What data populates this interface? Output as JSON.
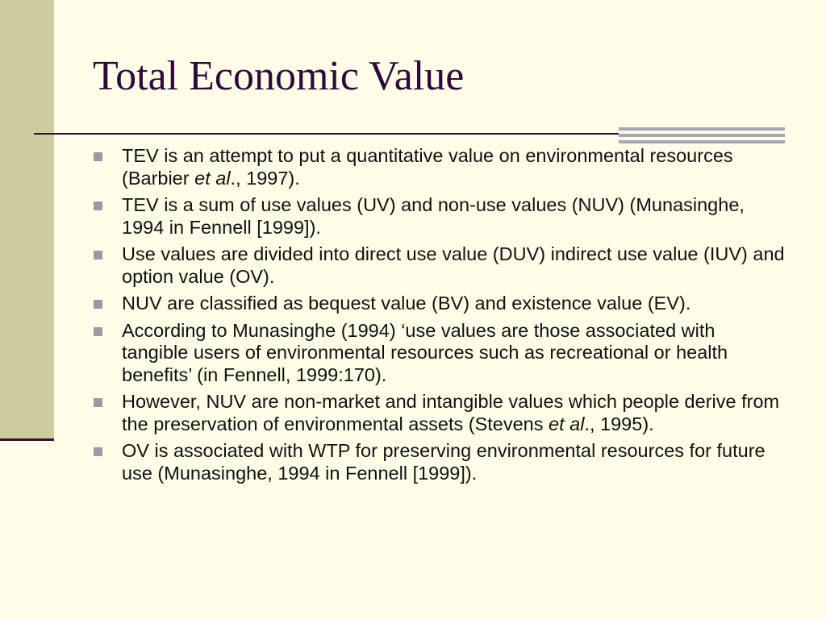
{
  "slide": {
    "title": "Total Economic Value",
    "bullets": [
      {
        "parts": [
          "TEV is an attempt to put a quantitative value on environmental resources (Barbier ",
          "et al",
          "., 1997)."
        ]
      },
      {
        "parts": [
          "TEV is a sum of use values (UV) and non-use values (NUV) (Munasinghe, 1994 in Fennell [1999])."
        ]
      },
      {
        "parts": [
          "Use values are divided into direct use value (DUV) indirect use value (IUV) and option value (OV)."
        ]
      },
      {
        "parts": [
          "NUV are classified as bequest value (BV) and existence value (EV)."
        ]
      },
      {
        "parts": [
          "According to Munasinghe (1994) ‘use values are those associated with tangible users of environmental resources such as recreational or health benefits’ (in Fennell, 1999:170)."
        ]
      },
      {
        "parts": [
          "However, NUV are non-market and intangible values which people derive from the preservation of environmental assets (Stevens ",
          "et al",
          "., 1995)."
        ]
      },
      {
        "parts": [
          "OV is associated with WTP for preserving environmental resources for future use (Munasinghe, 1994 in Fennell [1999])."
        ]
      }
    ]
  },
  "colors": {
    "background": "#fefee8",
    "left_band": "#cccc9e",
    "title_text": "#2e0a3a",
    "rule": "#3a0d3a",
    "accent_bars": "#a7a7b5",
    "bullet_marker": "#9a9aa6"
  },
  "icons": {
    "bullet_marker": "square-bullet-icon"
  }
}
